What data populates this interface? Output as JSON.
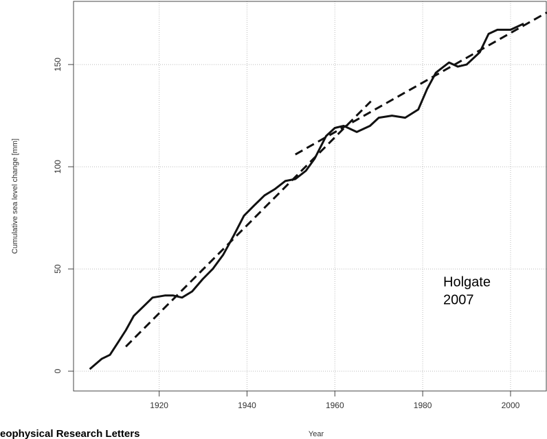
{
  "chart_data": {
    "type": "line",
    "y_label": "Cumulative sea level change [mm]",
    "x_label": "Year",
    "annotation": [
      "Holgate",
      "2007"
    ],
    "footer": "eophysical Research Letters",
    "xlim": [
      1900.5,
      2008.3
    ],
    "ylim": [
      -9.7,
      180.9
    ],
    "xticks": [
      1920,
      1940,
      1960,
      1980,
      2000
    ],
    "yticks": [
      0,
      50,
      100,
      150
    ],
    "grid": true,
    "series": [
      {
        "color": "#111111",
        "style": "solid",
        "x": [
          1904.2,
          1906.9,
          1908.8,
          1910.6,
          1912.4,
          1914.2,
          1916.6,
          1918.5,
          1921.3,
          1923.2,
          1925.2,
          1927.5,
          1929.9,
          1932.2,
          1934.6,
          1936.9,
          1939.3,
          1941.6,
          1944.0,
          1946.3,
          1948.7,
          1951.0,
          1953.4,
          1955.4,
          1958.0,
          1960.0,
          1962.0,
          1965.0,
          1968.0,
          1970.0,
          1973.0,
          1976.0,
          1979.0,
          1981.0,
          1983.0,
          1986.0,
          1988.0,
          1990.0,
          1993.0,
          1995.0,
          1997.0,
          2000.0,
          2003.0
        ],
        "values": [
          1,
          6,
          8,
          14,
          20,
          27,
          32,
          36,
          37,
          37,
          36,
          39,
          45,
          50,
          57,
          66,
          76,
          81,
          86,
          89,
          93,
          94,
          98,
          104,
          115,
          119,
          120,
          117,
          120,
          124,
          125,
          124,
          128,
          138,
          146,
          151,
          149,
          150,
          156,
          165,
          167,
          167,
          170
        ]
      },
      {
        "color": "#111111",
        "style": "dashed",
        "x": [
          1912.4,
          1968.2
        ],
        "values": [
          12,
          132
        ]
      },
      {
        "color": "#111111",
        "style": "dashed",
        "x": [
          1951.0,
          2008.3
        ],
        "values": [
          106,
          175.5
        ]
      }
    ]
  }
}
